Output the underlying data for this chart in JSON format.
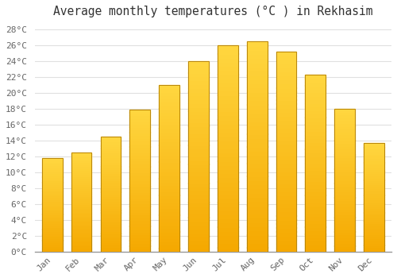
{
  "title": "Average monthly temperatures (°C ) in Rekhasim",
  "months": [
    "Jan",
    "Feb",
    "Mar",
    "Apr",
    "May",
    "Jun",
    "Jul",
    "Aug",
    "Sep",
    "Oct",
    "Nov",
    "Dec"
  ],
  "temperatures": [
    11.8,
    12.5,
    14.5,
    17.9,
    21.0,
    24.0,
    26.0,
    26.5,
    25.2,
    22.3,
    18.0,
    13.7
  ],
  "bar_color_bottom": "#F5A800",
  "bar_color_top": "#FFD740",
  "bar_edge_color": "#B8860B",
  "ylim": [
    0,
    29
  ],
  "yticks": [
    0,
    2,
    4,
    6,
    8,
    10,
    12,
    14,
    16,
    18,
    20,
    22,
    24,
    26,
    28
  ],
  "background_color": "#ffffff",
  "grid_color": "#e0e0e0",
  "title_fontsize": 10.5,
  "tick_fontsize": 8,
  "title_color": "#333333",
  "tick_color": "#666666"
}
